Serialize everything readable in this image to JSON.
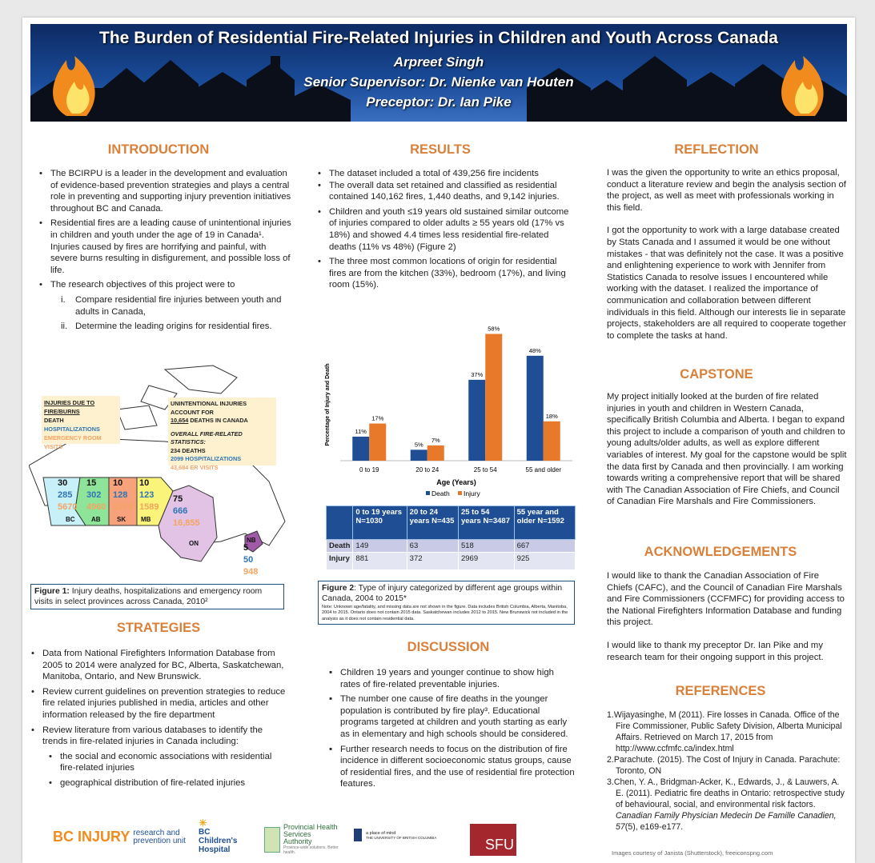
{
  "header": {
    "title": "The Burden of Residential Fire-Related Injuries in Children and Youth Across Canada",
    "author": "Arpreet Singh",
    "supervisor": "Senior Supervisor: Dr. Nienke van Houten",
    "preceptor": "Preceptor: Dr. Ian Pike"
  },
  "introduction": {
    "heading": "INTRODUCTION",
    "bullets": [
      "The BCIRPU is a leader in the development and evaluation of evidence-based prevention strategies and plays a central role in preventing and supporting injury prevention initiatives throughout BC and Canada.",
      "Residential fires are a leading cause of unintentional injuries in children and youth under the age of 19 in Canada¹. Injuries caused by fires are horrifying and painful, with severe burns resulting in disfigurement, and possible loss of life.",
      "The research objectives of this project were to"
    ],
    "objectives": [
      {
        "n": "i.",
        "text": "Compare residential fire injuries between youth and adults in Canada,"
      },
      {
        "n": "ii.",
        "text": "Determine the leading origins for residential fires."
      }
    ]
  },
  "map": {
    "legend_title": "INJURIES DUE TO FIRE/BURNS",
    "legend_death": "DEATH",
    "legend_hosp": "HOSPITALIZATIONS",
    "legend_er": "EMERGENCY ROOM VISITS",
    "summary_line1": "UNINTENTIONAL INJURIES ACCOUNT FOR",
    "summary_num": "10,654",
    "summary_line2": " DEATHS IN CANADA",
    "overall_title": "OVERALL FIRE-RELATED STATISTICS:",
    "overall_deaths": "234 DEATHS",
    "overall_hosp": "2099 HOSPITALIZATIONS",
    "overall_er": "43,684 ER VISITS",
    "provinces": [
      {
        "code": "BC",
        "death": "30",
        "hosp": "285",
        "er": "5670",
        "color": "#c8f0f8"
      },
      {
        "code": "AB",
        "death": "15",
        "hosp": "302",
        "er": "4960",
        "color": "#8ee59a"
      },
      {
        "code": "SK",
        "death": "10",
        "hosp": "128",
        "er": "1373",
        "color": "#f7a27a"
      },
      {
        "code": "MB",
        "death": "10",
        "hosp": "123",
        "er": "1589",
        "color": "#fbf47a"
      },
      {
        "code": "ON",
        "death": "75",
        "hosp": "666",
        "er": "16,855",
        "color": "#e2c3e6"
      },
      {
        "code": "NB",
        "death": "5",
        "hosp": "50",
        "er": "948",
        "color": "#a05aa8"
      }
    ],
    "colors": {
      "death": "#111111",
      "hosp": "#2e75b6",
      "er": "#f4a460"
    }
  },
  "figure1": {
    "label": "Figure 1:",
    "text": " Injury deaths, hospitalizations and emergency room visits in select provinces across Canada, 2010²"
  },
  "strategies": {
    "heading": "STRATEGIES",
    "bullets": [
      "Data from National Firefighters Information Database from 2005 to 2014 were analyzed for BC, Alberta, Saskatchewan, Manitoba, Ontario, and New Brunswick.",
      "Review current guidelines on prevention strategies to reduce fire related injuries published in media, articles and other information released by the fire department",
      "Review literature from various databases to identify the trends in fire-related injuries in Canada including:"
    ],
    "sub": [
      "the social and economic associations with residential fire-related injuries",
      "geographical distribution of fire-related injuries"
    ]
  },
  "results": {
    "heading": "RESULTS",
    "bullets": [
      "The dataset included a total of 439,256 fire incidents",
      "The overall data set retained and classified as residential contained 140,162 fires, 1,440 deaths, and 9,142 injuries.",
      "Children and youth ≤19 years old sustained similar outcome of injuries compared to older adults ≥ 55 years old (17% vs 18%) and showed 4.4 times less residential fire-related deaths (11% vs 48%) (Figure 2)",
      "The three most common locations of origin for residential fires are from the kitchen (33%), bedroom (17%), and living room (15%)."
    ]
  },
  "chart_data": {
    "type": "bar",
    "categories": [
      "0 to 19",
      "20 to 24",
      "25 to 54",
      "55 and older"
    ],
    "series": [
      {
        "name": "Death",
        "values": [
          11,
          5,
          37,
          48
        ],
        "labels": [
          "11%",
          "5%",
          "37%",
          "48%"
        ],
        "color": "#1f4e94"
      },
      {
        "name": "Injury",
        "values": [
          17,
          7,
          58,
          18
        ],
        "labels": [
          "17%",
          "7%",
          "58%",
          "18%"
        ],
        "color": "#e8792a"
      }
    ],
    "xlabel": "Age (Years)",
    "ylabel": "Percentage of Injury and Death",
    "ylim": [
      0,
      60
    ],
    "grid": false,
    "legend": "bottom"
  },
  "table": {
    "headers": [
      "",
      "0 to 19 years N=1030",
      "20 to 24 years N=435",
      "25 to 54 years N=3487",
      "55 year and older N=1592"
    ],
    "rows": [
      [
        "Death",
        "149",
        "63",
        "518",
        "667"
      ],
      [
        "Injury",
        "881",
        "372",
        "2969",
        "925"
      ]
    ]
  },
  "figure2": {
    "label": "Figure 2",
    "text": ": Type of injury categorized by different age groups within Canada, 2004 to 2015*",
    "note": "Note: Unknown age/fatality, and missing data are not shown in the figure. Data includes British Columbia, Alberta, Manitoba, 2004 to 2015. Ontario does not contain 2015 data. Saskatchewan includes 2012 to 2015. New Brunswick not included in the analysis as it does not contain residential data."
  },
  "discussion": {
    "heading": "DISCUSSION",
    "bullets": [
      "Children 19 years and younger continue to show high rates of fire-related preventable injuries.",
      "The number one cause of fire deaths in the younger population is contributed by fire play³. Educational programs targeted at children and youth starting as early as in elementary and high schools should be considered.",
      "Further research needs to focus on the distribution of fire incidence in different socioeconomic status groups, cause of residential fires, and the use of residential fire protection features."
    ]
  },
  "reflection": {
    "heading": "REFLECTION",
    "paragraphs": [
      "I was the given the opportunity to write an ethics proposal, conduct a literature review and begin the analysis section of the project, as well as meet with professionals working in this field.",
      "I got the opportunity to work with a large database created by Stats Canada and I assumed it would be one without mistakes - that was definitely not the case. It was a positive and enlightening experience to work with Jennifer from Statistics Canada to resolve issues I encountered while working with the dataset. I realized the importance of communication and collaboration between different individuals in this field. Although our interests lie in separate projects, stakeholders are all required to cooperate together to complete the tasks at hand."
    ]
  },
  "capstone": {
    "heading": "CAPSTONE",
    "text": "My project initially looked at the burden of fire related injuries in youth and children in Western Canada, specifically British Columbia and Alberta. I began to expand this project to include a comparison of youth and children to young adults/older adults, as well as explore different variables of interest.  My goal for the capstone would be split the data first by Canada and then provincially. I am working towards writing a comprehensive report that will be shared with The Canadian Association of Fire Chiefs, and Council of Canadian Fire Marshals and Fire Commissioners."
  },
  "acknowledgements": {
    "heading": "ACKNOWLEDGEMENTS",
    "paragraphs": [
      "I would like to thank the Canadian Association of Fire Chiefs (CAFC), and the Council of Canadian Fire Marshals and Fire Commissioners (CCFMFC) for providing access to the National Firefighters Information Database and funding this project.",
      "I would like to thank my preceptor Dr. Ian Pike and my research team for their ongoing support in this project."
    ]
  },
  "references": {
    "heading": "REFERENCES",
    "items": [
      {
        "n": "1.",
        "text": "Wijayasinghe, M (2011). Fire losses in Canada. Office of the Fire Commissioner, Public Safety Division, Alberta Municipal Affairs. Retrieved on March 17, 2015 from http://www.ccfmfc.ca/index.html"
      },
      {
        "n": "2.",
        "text": "Parachute. (2015). The Cost of Injury in Canada. Parachute: Toronto, ON"
      },
      {
        "n": "3.",
        "text": "Chen, Y. A., Bridgman-Acker, K., Edwards, J., & Lauwers, A. E. (2011). Pediatric fire deaths in Ontario: retrospective study of behavioural, social, and environmental risk factors. ",
        "journal": "Canadian Family Physician Medecin De Famille Canadien, 57",
        "tail": "(5), e169-e177."
      }
    ],
    "credit": "Images courtesy of Janista (Shutterstock), freeiconspng.com"
  },
  "logos": {
    "bcirpu_a": "BC INJURY",
    "bcirpu_b": "research and prevention unit",
    "bcch": "BC Children's Hospital",
    "phsa": "Provincial Health Services Authority",
    "phsa_tag": "Province-wide solutions. Better health.",
    "ubc_a": "a place of mind",
    "ubc_b": "THE UNIVERSITY OF BRITISH COLUMBIA",
    "sfu": "SFU"
  }
}
